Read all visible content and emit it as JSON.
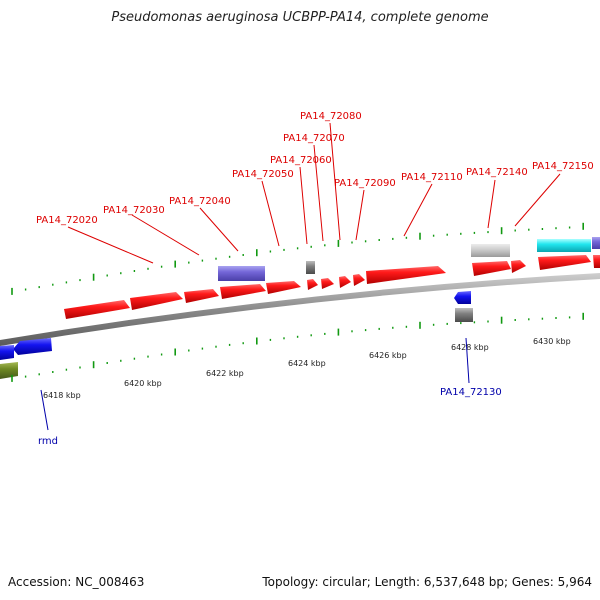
{
  "title": "Pseudomonas aeruginosa UCBPP-PA14, complete genome",
  "footer": {
    "accession": "Accession: NC_008463",
    "summary": "Topology: circular; Length: 6,537,648 bp; Genes: 5,964"
  },
  "colors": {
    "forward_label": "#dd0000",
    "reverse_label": "#0000aa",
    "backbone": "#888888",
    "tick": "#119911"
  },
  "ticks": [
    "6418 kbp",
    "6420 kbp",
    "6422 kbp",
    "6424 kbp",
    "6426 kbp",
    "6428 kbp",
    "6430 kbp"
  ],
  "forward_labels": [
    {
      "text": "PA14_72020"
    },
    {
      "text": "PA14_72030"
    },
    {
      "text": "PA14_72040"
    },
    {
      "text": "PA14_72050"
    },
    {
      "text": "PA14_72060"
    },
    {
      "text": "PA14_72070"
    },
    {
      "text": "PA14_72080"
    },
    {
      "text": "PA14_72090"
    },
    {
      "text": "PA14_72110"
    },
    {
      "text": "PA14_72140"
    },
    {
      "text": "PA14_72150"
    }
  ],
  "reverse_labels": [
    {
      "text": "rmd"
    },
    {
      "text": "PA14_72130"
    }
  ]
}
